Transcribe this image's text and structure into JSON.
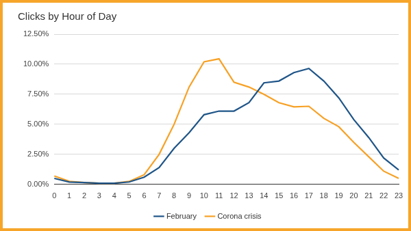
{
  "chart_data": {
    "type": "line",
    "title": "Clicks by Hour of Day",
    "categories": [
      "0",
      "1",
      "2",
      "3",
      "4",
      "5",
      "6",
      "7",
      "8",
      "9",
      "10",
      "11",
      "12",
      "13",
      "14",
      "15",
      "16",
      "17",
      "18",
      "19",
      "20",
      "21",
      "22",
      "23"
    ],
    "series": [
      {
        "name": "February",
        "color": "#1f5588",
        "values": [
          0.5,
          0.2,
          0.15,
          0.1,
          0.1,
          0.2,
          0.6,
          1.4,
          3.0,
          4.3,
          5.8,
          6.1,
          6.1,
          6.8,
          8.45,
          8.6,
          9.3,
          9.65,
          8.6,
          7.2,
          5.4,
          3.9,
          2.2,
          1.2
        ]
      },
      {
        "name": "Corona crisis",
        "color": "#f7a125",
        "values": [
          0.7,
          0.25,
          0.15,
          0.1,
          0.1,
          0.25,
          0.8,
          2.5,
          5.0,
          8.1,
          10.2,
          10.45,
          8.5,
          8.1,
          7.5,
          6.8,
          6.45,
          6.5,
          5.5,
          4.8,
          3.5,
          2.3,
          1.1,
          0.5
        ]
      }
    ],
    "ylim": [
      0,
      12.5
    ],
    "yticks": [
      {
        "value": 0,
        "label": "0.00%"
      },
      {
        "value": 2.5,
        "label": "2.50%"
      },
      {
        "value": 5,
        "label": "5.00%"
      },
      {
        "value": 7.5,
        "label": "7.50%"
      },
      {
        "value": 10,
        "label": "10.00%"
      },
      {
        "value": 12.5,
        "label": "12.50%"
      }
    ],
    "grid": true,
    "legend": "bottom"
  }
}
